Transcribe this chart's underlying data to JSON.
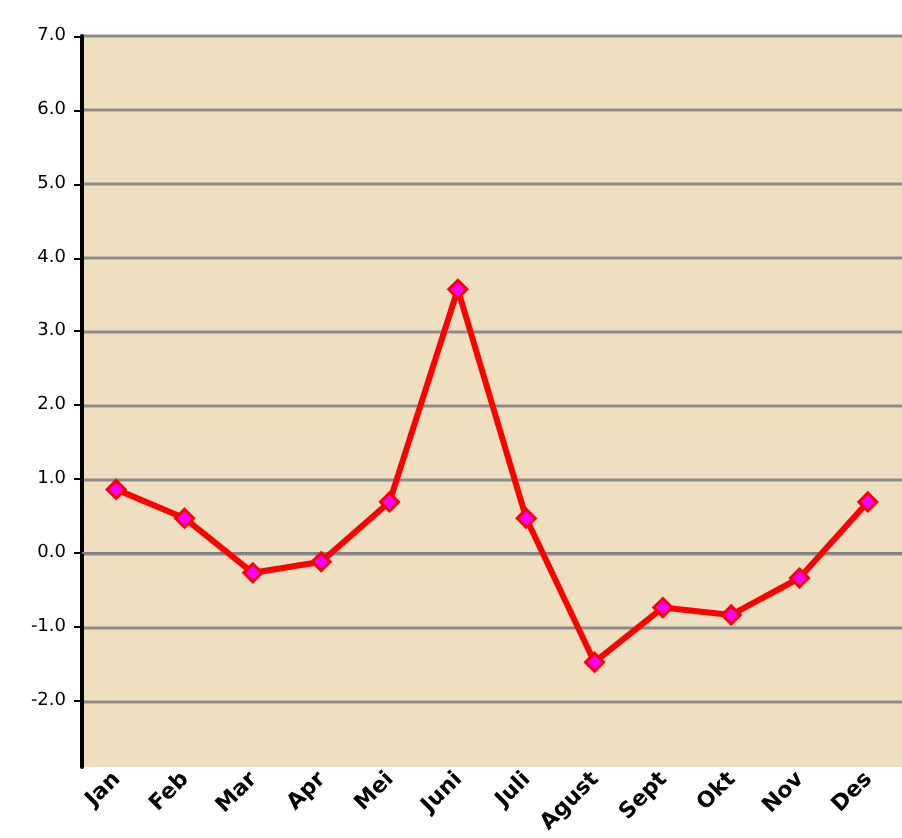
{
  "chart_data": {
    "type": "line",
    "categories": [
      "Jan",
      "Feb",
      "Mar",
      "Apr",
      "Mei",
      "Juni",
      "Juli",
      "Agust",
      "Sept",
      "Okt",
      "Nov",
      "Des"
    ],
    "series": [
      {
        "color": "#ff0000",
        "values": [
          0.86,
          0.47,
          -0.27,
          -0.12,
          0.69,
          3.57,
          0.47,
          -1.48,
          -0.74,
          -0.84,
          -0.34,
          0.69
        ]
      }
    ],
    "marker": "diamond",
    "line_style": "solid",
    "grid": "y",
    "ylim": [
      -2.9,
      7
    ],
    "yticks": [
      {
        "value": -2,
        "label": "-2.0"
      },
      {
        "value": -1,
        "label": "-1.0"
      },
      {
        "value": 0,
        "label": "0.0"
      },
      {
        "value": 1,
        "label": "1.0"
      },
      {
        "value": 2,
        "label": "2.0"
      },
      {
        "value": 3,
        "label": "3.0"
      },
      {
        "value": 4,
        "label": "4.0"
      },
      {
        "value": 5,
        "label": "5.0"
      },
      {
        "value": 6,
        "label": "6.0"
      },
      {
        "value": 7,
        "label": "7.0"
      }
    ]
  }
}
